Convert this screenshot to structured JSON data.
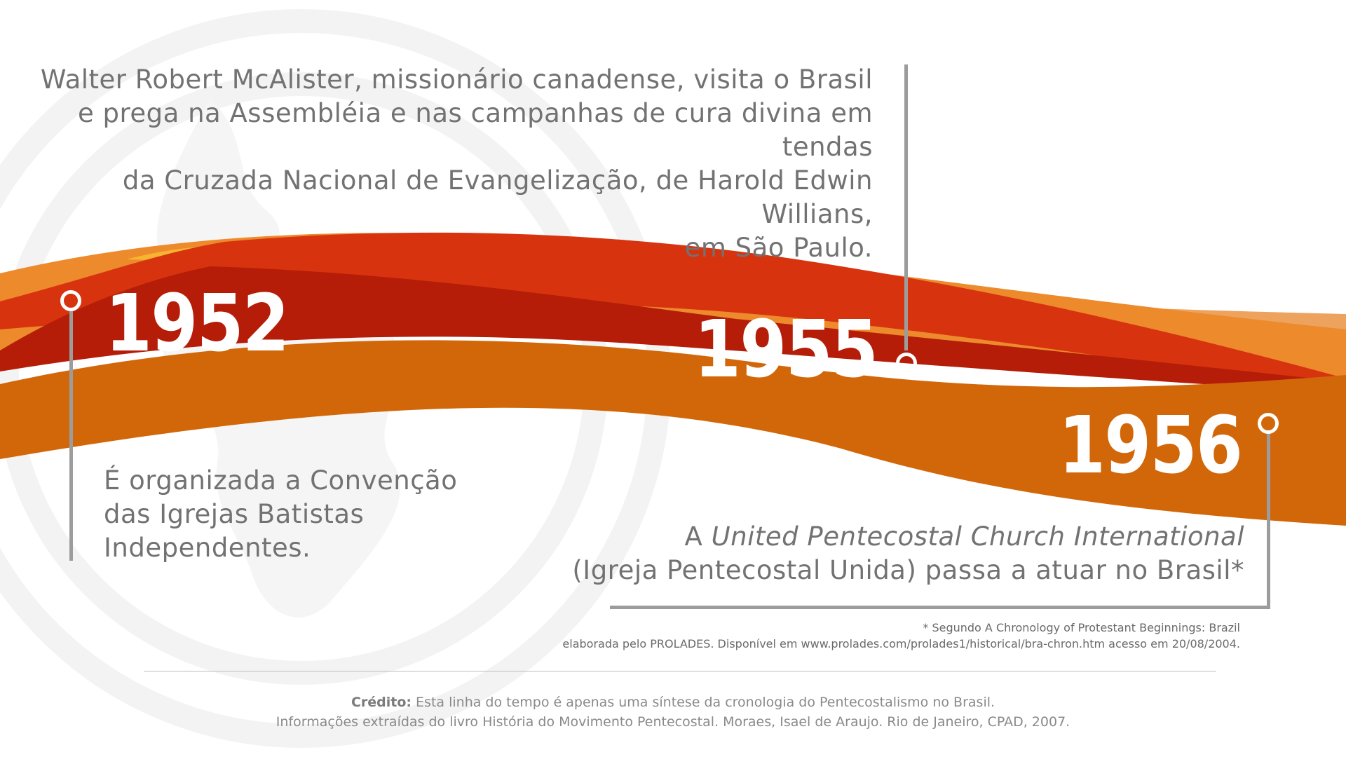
{
  "events": {
    "e1955": {
      "year": "1955",
      "lines": [
        "Walter Robert McAlister, missionário canadense, visita o Brasil",
        "e prega na Assembléia e nas campanhas de cura divina em tendas",
        "da Cruzada Nacional de Evangelização, de Harold Edwin Willians,",
        "em São Paulo."
      ]
    },
    "e1952": {
      "year": "1952",
      "lines": [
        "É organizada a Convenção",
        "das Igrejas Batistas",
        "Independentes."
      ]
    },
    "e1956": {
      "year": "1956",
      "line1_prefix": "A ",
      "line1_italic": "United Pentecostal Church International",
      "line2": "(Igreja Pentecostal Unida) passa a atuar no Brasil*"
    }
  },
  "footnote": {
    "line1": "* Segundo A Chronology of Protestant Beginnings: Brazil",
    "line2": "elaborada pelo PROLADES. Disponível em www.prolades.com/prolades1/historical/bra-chron.htm acesso em 20/08/2004."
  },
  "credit": {
    "label": "Crédito:",
    "line1": " Esta linha do tempo é apenas uma síntese da cronologia do Pentecostalismo no Brasil.",
    "line2": "Informações extraídas do livro História do Movimento Pentecostal. Moraes, Isael de Araujo. Rio de Janeiro, CPAD, 2007."
  },
  "colors": {
    "ribbon_main": "#d2670a",
    "ribbon_red": "#c12a0a",
    "ribbon_light": "#eda25e",
    "ribbon_yellow": "#f6b432",
    "text_grey": "#727272",
    "line_grey": "#9c9c9c"
  },
  "icons": {
    "background": "globe-watermark-icon",
    "timeline_marker": "circle-marker-icon"
  }
}
